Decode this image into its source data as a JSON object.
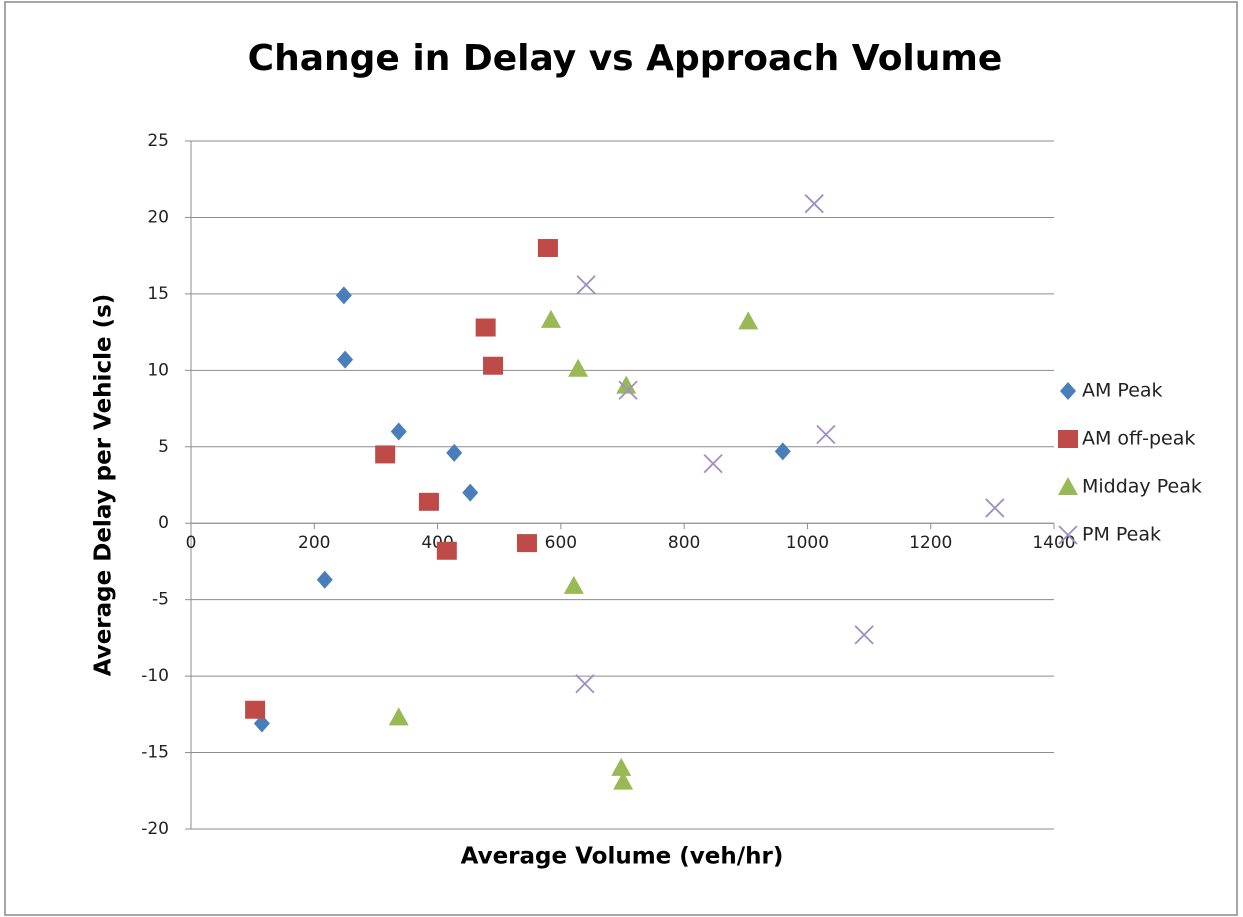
{
  "chart_data": {
    "type": "scatter",
    "title": "Change in Delay vs Approach Volume",
    "x_label": "Average Volume (veh/hr)",
    "y_label": "Average Delay per Vehicle (s)",
    "xlim": [
      0,
      1400
    ],
    "xticks": [
      0,
      200,
      400,
      600,
      800,
      1000,
      1200,
      1400
    ],
    "ylim": [
      -20,
      25
    ],
    "yticks": [
      -20,
      -15,
      -10,
      -5,
      0,
      5,
      10,
      15,
      20,
      25
    ],
    "grid": true,
    "legend": "right",
    "series": [
      {
        "name": "AM Peak",
        "color": "#4a7ebb",
        "marker": "diamond",
        "x": [
          248,
          250,
          337,
          427,
          453,
          217,
          115,
          960
        ],
        "values": [
          14.9,
          10.7,
          6.0,
          4.6,
          2.0,
          -3.7,
          -13.1,
          4.7
        ]
      },
      {
        "name": "AM off-peak",
        "color": "#be4b48",
        "marker": "square",
        "x": [
          579,
          478,
          490,
          315,
          386,
          415,
          545,
          104
        ],
        "values": [
          18.0,
          12.8,
          10.3,
          4.5,
          1.4,
          -1.8,
          -1.3,
          -12.2
        ]
      },
      {
        "name": "Midday Peak",
        "color": "#98b954",
        "marker": "triangle",
        "x": [
          584,
          628,
          706,
          904,
          621,
          337,
          698,
          701
        ],
        "values": [
          13.3,
          10.1,
          9.0,
          13.2,
          -4.1,
          -12.7,
          -16.0,
          -16.9
        ]
      },
      {
        "name": "PM Peak",
        "color": "#9f8fc4",
        "marker": "x",
        "x": [
          1011,
          641,
          709,
          847,
          1030,
          1304,
          1092,
          639
        ],
        "values": [
          20.9,
          15.6,
          8.7,
          3.9,
          5.8,
          1.0,
          -7.3,
          -10.5
        ]
      }
    ]
  }
}
